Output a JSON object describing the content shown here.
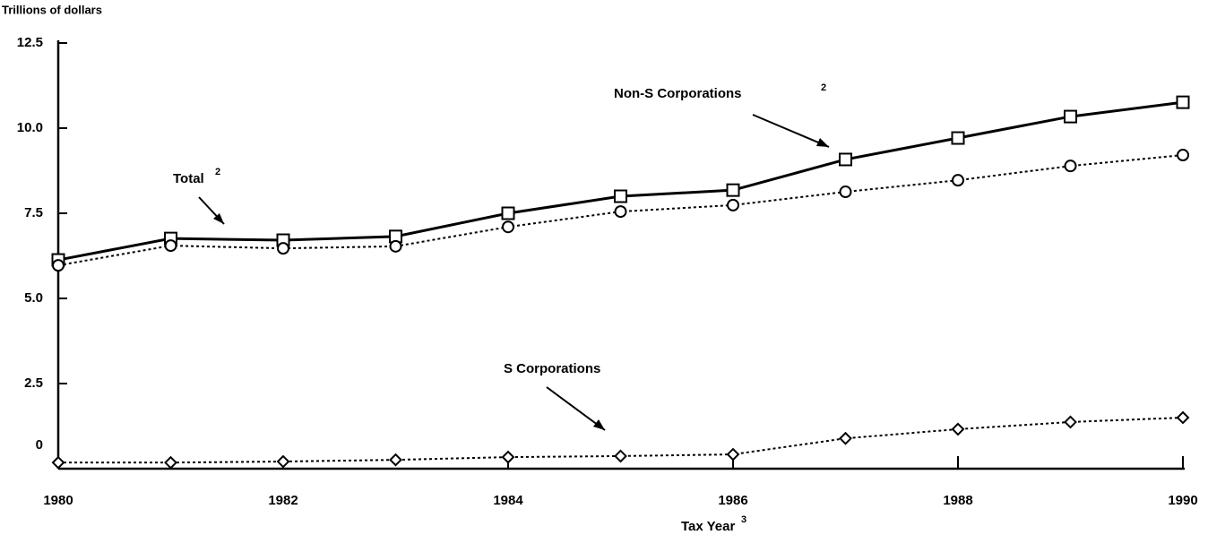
{
  "chart_data": {
    "type": "line",
    "y_axis_label": "Trillions of dollars",
    "x_axis_label": "Tax Year",
    "x_axis_note": "3",
    "x": [
      1980,
      1981,
      1982,
      1983,
      1984,
      1985,
      1986,
      1987,
      1988,
      1989,
      1990
    ],
    "xlim": [
      1980,
      1990
    ],
    "xticks": [
      1980,
      1982,
      1984,
      1986,
      1988,
      1990
    ],
    "ylim": [
      0,
      12.5
    ],
    "yticks": [
      0,
      2.5,
      {
        "value": 5,
        "label": "5.0"
      },
      7.5,
      {
        "value": 10,
        "label": "10.0"
      },
      12.5
    ],
    "grid": false,
    "series": [
      {
        "name": "Total",
        "note": "2",
        "color": "#000000",
        "marker": "square",
        "line_style": "solid",
        "values": [
          6.13,
          6.76,
          6.71,
          6.82,
          7.5,
          8.0,
          8.18,
          9.08,
          9.71,
          10.34,
          10.76
        ]
      },
      {
        "name": "Non-S Corporations",
        "note": "2",
        "color": "#000000",
        "marker": "circle",
        "line_style": "dotted",
        "values": [
          5.97,
          6.55,
          6.47,
          6.53,
          7.1,
          7.55,
          7.74,
          8.13,
          8.47,
          8.89,
          9.21
        ]
      },
      {
        "name": "S Corporations",
        "color": "#000000",
        "marker": "diamond",
        "line_style": "dotted",
        "values": [
          0.18,
          0.18,
          0.21,
          0.26,
          0.34,
          0.37,
          0.42,
          0.89,
          1.16,
          1.37,
          1.5
        ]
      }
    ]
  }
}
